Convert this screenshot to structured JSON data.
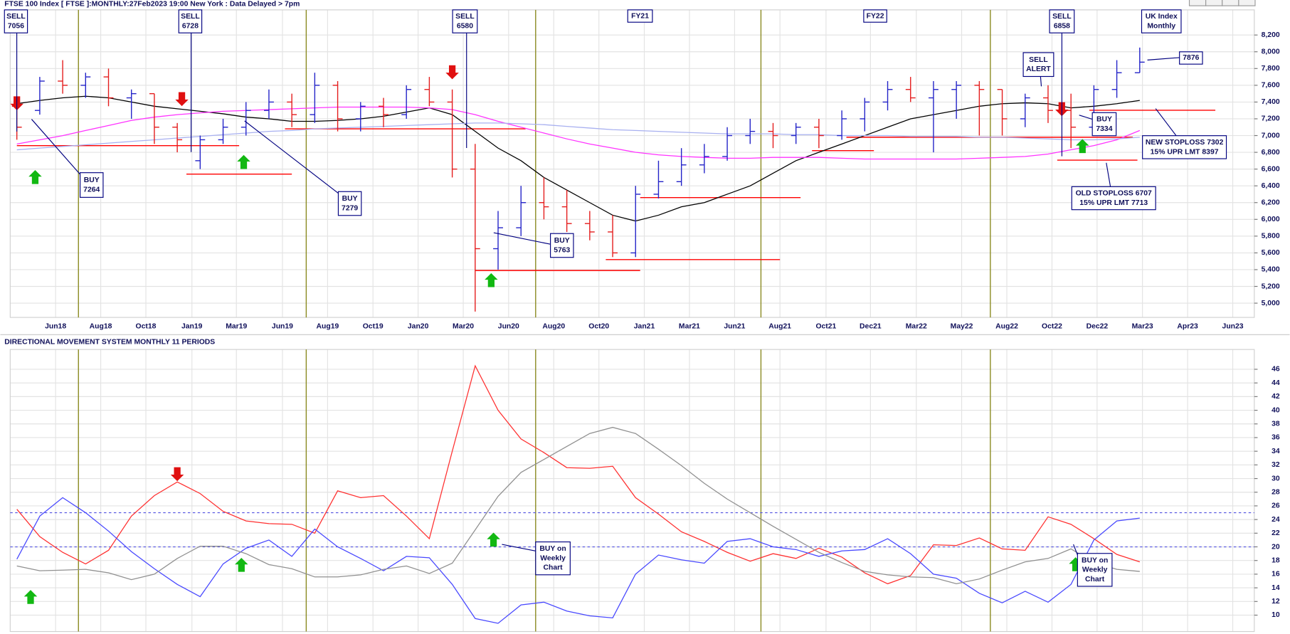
{
  "chart_data": [
    {
      "type": "ohlc",
      "title": "FTSE 100 Index [ FTSE ]:MONTHLY:27Feb2023 19:00 New York : Data Delayed > 7pm",
      "open": [
        7350,
        7300,
        7650,
        7600,
        7700,
        7450,
        7500,
        7100,
        6700,
        6950,
        7100,
        7300,
        7400,
        7250,
        7600,
        7200,
        7350,
        7250,
        7550,
        7400,
        6600,
        5650,
        5900,
        6200,
        6150,
        5950,
        5850,
        5600,
        6300,
        6450,
        6650,
        6750,
        7000,
        7050,
        7000,
        7100,
        7000,
        7200,
        7400,
        7550,
        7450,
        7550,
        7600,
        7550,
        7200,
        7450,
        7300,
        7100,
        7550,
        7750
      ],
      "high": [
        7400,
        7700,
        7900,
        7750,
        7800,
        7550,
        7500,
        7150,
        7000,
        7200,
        7400,
        7550,
        7500,
        7750,
        7650,
        7400,
        7450,
        7600,
        7700,
        7550,
        6900,
        6100,
        6400,
        6500,
        6350,
        6100,
        6050,
        6400,
        6700,
        6850,
        6900,
        7100,
        7200,
        7150,
        7150,
        7200,
        7300,
        7450,
        7650,
        7700,
        7650,
        7650,
        7650,
        7550,
        7500,
        7600,
        7500,
        7600,
        7900,
        8050
      ],
      "low": [
        6950,
        7250,
        7500,
        7450,
        7350,
        7200,
        6900,
        6800,
        6600,
        6900,
        7000,
        7200,
        7100,
        7150,
        7050,
        7050,
        7100,
        7200,
        7350,
        6500,
        4900,
        5400,
        5800,
        6000,
        5850,
        5750,
        5550,
        5550,
        6250,
        6400,
        6550,
        6700,
        6900,
        6850,
        6900,
        6850,
        6950,
        7050,
        7300,
        7400,
        6800,
        7200,
        7000,
        7000,
        7100,
        7150,
        6850,
        7050,
        7450,
        7750
      ],
      "close": [
        7100,
        7650,
        7600,
        7700,
        7450,
        7500,
        7100,
        6950,
        6950,
        7100,
        7300,
        7400,
        7250,
        7600,
        7200,
        7350,
        7250,
        7550,
        7400,
        6600,
        5650,
        5900,
        6200,
        6150,
        5950,
        5850,
        5600,
        6300,
        6450,
        6650,
        6750,
        7000,
        7050,
        7000,
        7100,
        7000,
        7200,
        7400,
        7550,
        7450,
        7550,
        7600,
        7550,
        7200,
        7450,
        7300,
        7100,
        7550,
        7750,
        7876
      ],
      "up_color": "#2323c8",
      "down_color": "#e41c1c",
      "series": [
        {
          "color": "#000000",
          "values": [
            7380,
            7420,
            7450,
            7470,
            7450,
            7400,
            7350,
            7320,
            7290,
            7260,
            7220,
            7200,
            7170,
            7170,
            7180,
            7200,
            7230,
            7280,
            7330,
            7250,
            7050,
            6850,
            6700,
            6500,
            6350,
            6200,
            6050,
            5980,
            6050,
            6150,
            6200,
            6300,
            6400,
            6550,
            6700,
            6800,
            6900,
            7000,
            7100,
            7200,
            7250,
            7300,
            7350,
            7380,
            7390,
            7380,
            7330,
            7350,
            7380,
            7420
          ]
        },
        {
          "color": "#ff33ff",
          "values": [
            6900,
            6950,
            7000,
            7060,
            7120,
            7180,
            7220,
            7250,
            7270,
            7290,
            7300,
            7310,
            7320,
            7330,
            7340,
            7340,
            7340,
            7340,
            7330,
            7310,
            7250,
            7170,
            7100,
            7030,
            6960,
            6900,
            6850,
            6800,
            6770,
            6750,
            6740,
            6730,
            6730,
            6740,
            6740,
            6740,
            6730,
            6720,
            6720,
            6720,
            6720,
            6720,
            6730,
            6740,
            6750,
            6780,
            6830,
            6880,
            6950,
            7060
          ]
        },
        {
          "color": "#a8b0f0",
          "values": [
            6830,
            6850,
            6870,
            6890,
            6910,
            6930,
            6950,
            6970,
            6990,
            7010,
            7030,
            7050,
            7060,
            7080,
            7090,
            7100,
            7110,
            7120,
            7130,
            7140,
            7150,
            7150,
            7140,
            7130,
            7110,
            7090,
            7070,
            7060,
            7050,
            7040,
            7030,
            7020,
            7020,
            7020,
            7010,
            7010,
            7000,
            7000,
            7000,
            6990,
            6990,
            6990,
            6980,
            6980,
            6970,
            6960,
            6950,
            6950,
            6960,
            6980
          ]
        }
      ],
      "level_color": "#ff0000",
      "levels": [
        {
          "value": 6880,
          "from": 0,
          "to": 9.7
        },
        {
          "value": 6540,
          "from": 7.4,
          "to": 12
        },
        {
          "value": 7080,
          "from": 11.7,
          "to": 22.2
        },
        {
          "value": 5390,
          "from": 20,
          "to": 27.2
        },
        {
          "value": 5520,
          "from": 25.7,
          "to": 33.3
        },
        {
          "value": 6260,
          "from": 27.2,
          "to": 34.2
        },
        {
          "value": 6820,
          "from": 34.7,
          "to": 37.4
        },
        {
          "value": 6980,
          "from": 36.2,
          "to": 48.7
        },
        {
          "value": 6707,
          "from": 45.4,
          "to": 48.9
        },
        {
          "value": 7302,
          "from": 46.8,
          "to": 52.3
        }
      ],
      "up_arrows": [
        {
          "x": 0.8,
          "y": 6500
        },
        {
          "x": 9.9,
          "y": 6680
        },
        {
          "x": 20.7,
          "y": 5270
        },
        {
          "x": 46.5,
          "y": 6870
        }
      ],
      "down_arrows": [
        {
          "x": 0,
          "y": 7390
        },
        {
          "x": 7.2,
          "y": 7440
        },
        {
          "x": 19,
          "y": 7760
        },
        {
          "x": 45.6,
          "y": 7320
        }
      ],
      "annotations": [
        {
          "lines": [
            "SELL",
            "7056"
          ]
        },
        {
          "lines": [
            "SELL",
            "6728"
          ]
        },
        {
          "lines": [
            "SELL",
            "6580"
          ]
        },
        {
          "lines": [
            "FY21"
          ]
        },
        {
          "lines": [
            "FY22"
          ]
        },
        {
          "lines": [
            "SELL",
            "6858"
          ]
        },
        {
          "lines": [
            "UK Index",
            "Monthly"
          ]
        },
        {
          "lines": [
            "BUY",
            "7264"
          ]
        },
        {
          "lines": [
            "BUY",
            "7279"
          ]
        },
        {
          "lines": [
            "BUY",
            "5763"
          ]
        },
        {
          "lines": [
            "SELL",
            "ALERT"
          ]
        },
        {
          "lines": [
            "BUY",
            "7334"
          ]
        },
        {
          "lines": [
            "7876"
          ]
        },
        {
          "lines": [
            "NEW STOPLOSS 7302",
            "15% UPR LMT 8397"
          ]
        },
        {
          "lines": [
            "OLD STOPLOSS 6707",
            "15% UPR LMT 7713"
          ]
        }
      ],
      "xlim": [
        -0.29,
        54.0
      ],
      "ylim": [
        4830,
        8500
      ],
      "xticks": [
        {
          "value": 1.69,
          "label": "Jun18"
        },
        {
          "value": 3.66,
          "label": "Aug18"
        },
        {
          "value": 5.63,
          "label": "Oct18"
        },
        {
          "value": 7.64,
          "label": "Jan19"
        },
        {
          "value": 9.58,
          "label": "Mar19"
        },
        {
          "value": 11.59,
          "label": "Jun19"
        },
        {
          "value": 13.56,
          "label": "Aug19"
        },
        {
          "value": 15.54,
          "label": "Oct19"
        },
        {
          "value": 17.51,
          "label": "Jan20"
        },
        {
          "value": 19.48,
          "label": "Mar20"
        },
        {
          "value": 21.46,
          "label": "Jun20"
        },
        {
          "value": 23.43,
          "label": "Aug20"
        },
        {
          "value": 25.4,
          "label": "Oct20"
        },
        {
          "value": 27.38,
          "label": "Jan21"
        },
        {
          "value": 29.35,
          "label": "Mar21"
        },
        {
          "value": 31.32,
          "label": "Jun21"
        },
        {
          "value": 33.3,
          "label": "Aug21"
        },
        {
          "value": 35.31,
          "label": "Oct21"
        },
        {
          "value": 37.25,
          "label": "Dec21"
        },
        {
          "value": 39.25,
          "label": "Mar22"
        },
        {
          "value": 41.23,
          "label": "May22"
        },
        {
          "value": 43.2,
          "label": "Aug22"
        },
        {
          "value": 45.17,
          "label": "Oct22"
        },
        {
          "value": 47.14,
          "label": "Dec22"
        },
        {
          "value": 49.12,
          "label": "Mar23"
        },
        {
          "value": 51.09,
          "label": "Apr23"
        },
        {
          "value": 53.06,
          "label": "Jun23"
        }
      ],
      "yticks": [
        {
          "value": 5000,
          "label": "5,000"
        },
        {
          "value": 5200,
          "label": "5,200"
        },
        {
          "value": 5400,
          "label": "5,400"
        },
        {
          "value": 5600,
          "label": "5,600"
        },
        {
          "value": 5800,
          "label": "5,800"
        },
        {
          "value": 6000,
          "label": "6,000"
        },
        {
          "value": 6200,
          "label": "6,200"
        },
        {
          "value": 6400,
          "label": "6,400"
        },
        {
          "value": 6600,
          "label": "6,600"
        },
        {
          "value": 6800,
          "label": "6,800"
        },
        {
          "value": 7000,
          "label": "7,000"
        },
        {
          "value": 7200,
          "label": "7,200"
        },
        {
          "value": 7400,
          "label": "7,400"
        },
        {
          "value": 7600,
          "label": "7,600"
        },
        {
          "value": 7800,
          "label": "7,800"
        },
        {
          "value": 8000,
          "label": "8,000"
        },
        {
          "value": 8200,
          "label": "8,200"
        }
      ],
      "grid": true
    },
    {
      "type": "line",
      "title": "DIRECTIONAL MOVEMENT SYSTEM MONTHLY 11 PERIODS",
      "series": [
        {
          "color": "#ff3030",
          "values": [
            25.5,
            21.5,
            19.2,
            17.5,
            19.5,
            24.5,
            27.5,
            29.5,
            27.8,
            25.2,
            23.8,
            23.4,
            23.3,
            22,
            28.2,
            27.2,
            27.5,
            24.5,
            21.2,
            34,
            46.5,
            40,
            35.8,
            33.8,
            31.6,
            31.5,
            31.8,
            27.2,
            24.8,
            22.2,
            20.8,
            19.2,
            17.9,
            19,
            18.3,
            19.8,
            18.5,
            16.2,
            14.6,
            15.8,
            20.3,
            20.2,
            21.3,
            19.7,
            19.5,
            24.4,
            23.3,
            21.2,
            18.9,
            17.8
          ]
        },
        {
          "color": "#4848ff",
          "values": [
            18.2,
            24.5,
            27.2,
            25,
            22.3,
            19.3,
            16.8,
            14.5,
            12.7,
            17.5,
            19.8,
            21,
            18.6,
            22.6,
            20,
            18.3,
            16.5,
            18.6,
            18.4,
            14.5,
            9.5,
            8.8,
            11.5,
            11.9,
            10.6,
            9.9,
            9.6,
            16,
            18.8,
            18.1,
            17.6,
            20.8,
            21.2,
            20,
            19.6,
            18.6,
            19.4,
            19.6,
            21.2,
            19,
            16,
            15.4,
            13.2,
            11.8,
            13.5,
            11.9,
            14.5,
            21,
            23.8,
            24.2
          ]
        },
        {
          "color": "#909090",
          "values": [
            17.2,
            16.5,
            16.6,
            16.7,
            16.2,
            15.2,
            16,
            18.3,
            20.1,
            20.1,
            19,
            17.4,
            16.8,
            15.6,
            15.6,
            15.9,
            16.7,
            17.2,
            16.1,
            17.6,
            22.5,
            27.4,
            30.9,
            32.8,
            34.7,
            36.6,
            37.5,
            36.6,
            34.3,
            31.9,
            29.3,
            27,
            25,
            23,
            21.1,
            19.2,
            17.7,
            16.4,
            15.9,
            15.6,
            15.5,
            14.6,
            15.3,
            16.6,
            17.8,
            18.3,
            19.7,
            17.7,
            16.7,
            16.4
          ]
        }
      ],
      "reference_lines": [
        25,
        20
      ],
      "reference_color": "#5050e0",
      "up_arrows": [
        {
          "x": 0.6,
          "y": 12.6
        },
        {
          "x": 9.8,
          "y": 17.3
        },
        {
          "x": 20.8,
          "y": 21
        },
        {
          "x": 46.2,
          "y": 17.4
        }
      ],
      "down_arrows": [
        {
          "x": 7.0,
          "y": 30.7
        }
      ],
      "annotations": [
        {
          "lines": [
            "BUY on",
            "Weekly",
            "Chart"
          ]
        },
        {
          "lines": [
            "BUY on",
            "Weekly",
            "Chart"
          ]
        }
      ],
      "xlim": [
        -0.29,
        54.0
      ],
      "ylim": [
        7.6,
        48.9
      ],
      "yticks": [
        10,
        12,
        14,
        16,
        18,
        20,
        22,
        24,
        26,
        28,
        30,
        32,
        34,
        36,
        38,
        40,
        42,
        44,
        46
      ],
      "grid": true
    }
  ]
}
